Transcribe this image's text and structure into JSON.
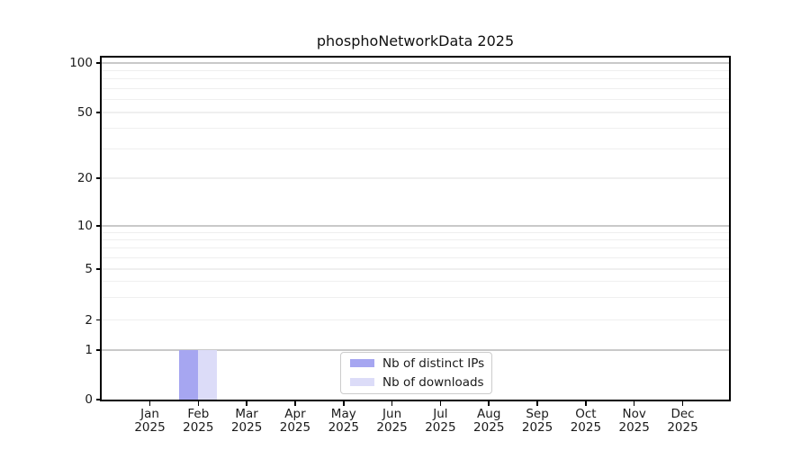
{
  "chart_data": {
    "type": "bar",
    "title": "phosphoNetworkData 2025",
    "x_year": "2025",
    "categories": [
      "Jan 2025",
      "Feb 2025",
      "Mar 2025",
      "Apr 2025",
      "May 2025",
      "Jun 2025",
      "Jul 2025",
      "Aug 2025",
      "Sep 2025",
      "Oct 2025",
      "Nov 2025",
      "Dec 2025"
    ],
    "series": [
      {
        "name": "Nb of distinct IPs",
        "color": "#a6a6f1",
        "values": [
          0,
          1,
          0,
          0,
          0,
          0,
          0,
          0,
          0,
          0,
          0,
          0
        ]
      },
      {
        "name": "Nb of downloads",
        "color": "#dcdcf8",
        "values": [
          0,
          1,
          0,
          0,
          0,
          0,
          0,
          0,
          0,
          0,
          0,
          0
        ]
      }
    ],
    "y_axis": {
      "scale": "log-like",
      "range": [
        0,
        100
      ],
      "tick_values": [
        0,
        1,
        2,
        5,
        10,
        20,
        50,
        100
      ],
      "major_grid_values": [
        1,
        10,
        100
      ],
      "minor_grid_values": [
        2,
        3,
        4,
        5,
        6,
        7,
        8,
        9,
        20,
        30,
        40,
        50,
        60,
        70,
        80,
        90
      ]
    },
    "grid": true,
    "legend_position": "bottom-center-inside"
  },
  "colors": {
    "grid_major": "#c9c9c9",
    "grid_minor": "#efefef",
    "axis": "#000000",
    "text": "#1a1a1a",
    "legend_border": "#cccccc",
    "background": "#ffffff"
  }
}
